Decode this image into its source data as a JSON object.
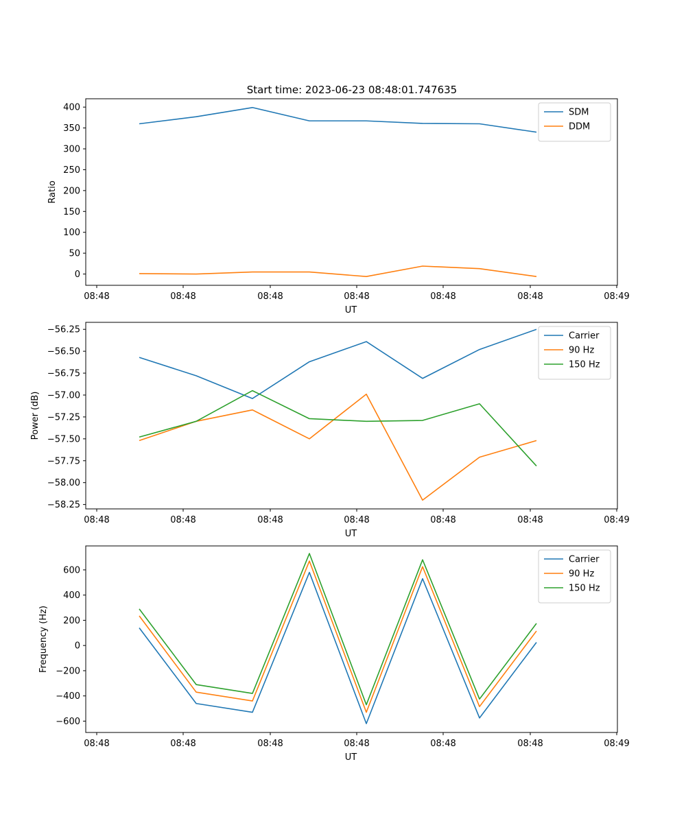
{
  "figure": {
    "title": "Start time: 2023-06-23 08:48:01.747635"
  },
  "chart_data": [
    {
      "type": "line",
      "xlabel": "UT",
      "ylabel": "Ratio",
      "x_tick_labels": [
        "08:48",
        "08:48",
        "08:48",
        "08:48",
        "08:48",
        "08:48",
        "08:49"
      ],
      "ylim": [
        -27,
        420
      ],
      "y_ticks": [
        0,
        50,
        100,
        150,
        200,
        250,
        300,
        350,
        400
      ],
      "legend_placement": "upper-right",
      "grid": false,
      "series": [
        {
          "name": "SDM",
          "color": "#1f77b4",
          "values": [
            360,
            377,
            399,
            367,
            367,
            361,
            360,
            340
          ]
        },
        {
          "name": "DDM",
          "color": "#ff7f0e",
          "values": [
            1,
            0,
            5,
            5,
            -6,
            19,
            13,
            -6
          ]
        }
      ]
    },
    {
      "type": "line",
      "xlabel": "UT",
      "ylabel": "Power (dB)",
      "x_tick_labels": [
        "08:48",
        "08:48",
        "08:48",
        "08:48",
        "08:48",
        "08:48",
        "08:49"
      ],
      "ylim": [
        -58.3,
        -56.17
      ],
      "y_ticks": [
        -58.25,
        -58.0,
        -57.75,
        -57.5,
        -57.25,
        -57.0,
        -56.75,
        -56.5,
        -56.25
      ],
      "legend_placement": "upper-right",
      "grid": false,
      "series": [
        {
          "name": "Carrier",
          "color": "#1f77b4",
          "values": [
            -56.57,
            -56.78,
            -57.04,
            -56.62,
            -56.39,
            -56.81,
            -56.48,
            -56.25
          ]
        },
        {
          "name": "90 Hz",
          "color": "#ff7f0e",
          "values": [
            -57.52,
            -57.3,
            -57.17,
            -57.5,
            -56.99,
            -58.2,
            -57.71,
            -57.52
          ]
        },
        {
          "name": "150 Hz",
          "color": "#2ca02c",
          "values": [
            -57.48,
            -57.3,
            -56.95,
            -57.27,
            -57.3,
            -57.29,
            -57.1,
            -57.81
          ]
        }
      ]
    },
    {
      "type": "line",
      "xlabel": "UT",
      "ylabel": "Frequency (Hz)",
      "x_tick_labels": [
        "08:48",
        "08:48",
        "08:48",
        "08:48",
        "08:48",
        "08:48",
        "08:49"
      ],
      "ylim": [
        -690,
        790
      ],
      "y_ticks": [
        -600,
        -400,
        -200,
        0,
        200,
        400,
        600
      ],
      "legend_placement": "upper-right",
      "grid": false,
      "series": [
        {
          "name": "Carrier",
          "color": "#1f77b4",
          "values": [
            140,
            -460,
            -530,
            580,
            -620,
            530,
            -575,
            25
          ]
        },
        {
          "name": "90 Hz",
          "color": "#ff7f0e",
          "values": [
            235,
            -370,
            -440,
            670,
            -530,
            625,
            -485,
            115
          ]
        },
        {
          "name": "150 Hz",
          "color": "#2ca02c",
          "values": [
            290,
            -310,
            -380,
            730,
            -470,
            680,
            -425,
            175
          ]
        }
      ]
    }
  ]
}
